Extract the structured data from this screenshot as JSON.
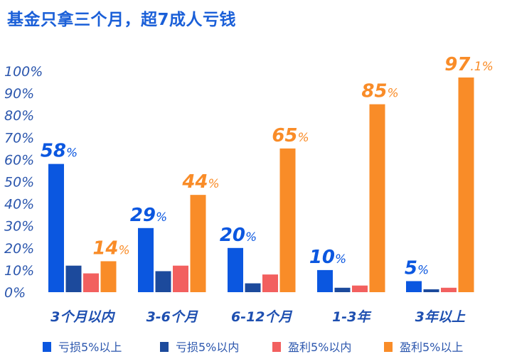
{
  "chart_data": {
    "type": "bar",
    "title": "基金只拿三个月，超7成人亏钱",
    "xlabel": "",
    "ylabel": "",
    "ylim": [
      0,
      100
    ],
    "yticks": [
      "0%",
      "10%",
      "20%",
      "30%",
      "40%",
      "50%",
      "60%",
      "70%",
      "80%",
      "90%",
      "100%"
    ],
    "categories": [
      "3个月以内",
      "3-6个月",
      "6-12个月",
      "1-3年",
      "3年以上"
    ],
    "series": [
      {
        "name": "亏损5%以上",
        "color": "#0b57e0",
        "values": [
          58,
          29,
          20,
          10,
          5
        ],
        "labels": [
          "58%",
          "29%",
          "20%",
          "10%",
          "5%"
        ]
      },
      {
        "name": "亏损5%以内",
        "color": "#1c4a9c",
        "values": [
          12,
          9.5,
          4,
          2,
          1.3
        ],
        "labels": [
          null,
          null,
          null,
          null,
          null
        ]
      },
      {
        "name": "盈利5%以内",
        "color": "#f2605f",
        "values": [
          8.5,
          12,
          8,
          3,
          2
        ],
        "labels": [
          null,
          null,
          null,
          null,
          null
        ]
      },
      {
        "name": "盈利5%以上",
        "color": "#f98c28",
        "values": [
          14,
          44,
          65,
          85,
          97.1
        ],
        "labels": [
          "14%",
          "44%",
          "65%",
          "85%",
          "97.1%"
        ]
      }
    ],
    "grid": false,
    "legend_position": "bottom"
  }
}
